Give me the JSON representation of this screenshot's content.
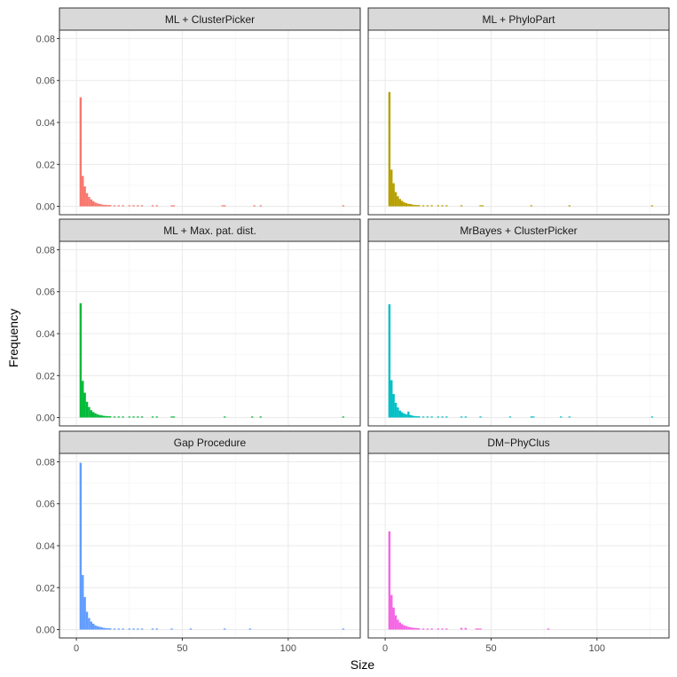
{
  "chart_data": {
    "type": "bar",
    "facet_layout": "3 rows x 2 columns",
    "xlabel": "Size",
    "ylabel": "Frequency",
    "xlim": [
      -8,
      134
    ],
    "ylim": [
      -0.004,
      0.084
    ],
    "x_ticks": [
      0,
      50,
      100
    ],
    "x_tick_labels": [
      "0",
      "50",
      "100"
    ],
    "y_ticks": [
      0,
      0.02,
      0.04,
      0.06,
      0.08
    ],
    "y_tick_labels": [
      "0.00",
      "0.02",
      "0.04",
      "0.06",
      "0.08"
    ],
    "grid": true,
    "legend": "none",
    "bin_width": 1,
    "panels": [
      {
        "title": "ML + ClusterPicker",
        "color": "#F8766D",
        "x": [
          2,
          3,
          4,
          5,
          6,
          7,
          8,
          9,
          10,
          11,
          12,
          13,
          14,
          15,
          16,
          18,
          20,
          22,
          25,
          27,
          29,
          31,
          36,
          38,
          45,
          46,
          69,
          70,
          84,
          87,
          126
        ],
        "values": [
          0.052,
          0.0145,
          0.0095,
          0.0063,
          0.0045,
          0.0033,
          0.0025,
          0.0018,
          0.0014,
          0.0011,
          0.0009,
          0.0007,
          0.0007,
          0.0006,
          0.0006,
          0.0005,
          0.0005,
          0.0005,
          0.0005,
          0.0005,
          0.0005,
          0.0005,
          0.0005,
          0.0005,
          0.0005,
          0.0005,
          0.0005,
          0.0005,
          0.0005,
          0.0005,
          0.0005
        ]
      },
      {
        "title": "ML + PhyloPart",
        "color": "#B79F00",
        "x": [
          2,
          3,
          4,
          5,
          6,
          7,
          8,
          9,
          10,
          11,
          12,
          13,
          14,
          15,
          16,
          18,
          20,
          22,
          25,
          27,
          29,
          36,
          45,
          46,
          69,
          87,
          126
        ],
        "values": [
          0.0545,
          0.0175,
          0.011,
          0.0068,
          0.0048,
          0.0035,
          0.0026,
          0.0019,
          0.0015,
          0.0012,
          0.0011,
          0.0008,
          0.0007,
          0.0006,
          0.0006,
          0.0005,
          0.0005,
          0.0005,
          0.0005,
          0.0005,
          0.0005,
          0.0005,
          0.0005,
          0.0005,
          0.0005,
          0.0005,
          0.0005
        ]
      },
      {
        "title": "ML + Max. pat. dist.",
        "color": "#00BA38",
        "x": [
          2,
          3,
          4,
          5,
          6,
          7,
          8,
          9,
          10,
          11,
          12,
          13,
          14,
          15,
          16,
          18,
          20,
          22,
          25,
          27,
          29,
          31,
          36,
          38,
          45,
          46,
          70,
          83,
          87,
          126
        ],
        "values": [
          0.0545,
          0.0175,
          0.0118,
          0.0075,
          0.005,
          0.0035,
          0.0026,
          0.002,
          0.0015,
          0.0012,
          0.001,
          0.0008,
          0.0007,
          0.0006,
          0.0006,
          0.0005,
          0.0005,
          0.0005,
          0.0005,
          0.0005,
          0.0005,
          0.0005,
          0.0005,
          0.0005,
          0.0005,
          0.0005,
          0.0005,
          0.0005,
          0.0005,
          0.0005
        ]
      },
      {
        "title": "MrBayes + ClusterPicker",
        "color": "#00BFC4",
        "x": [
          2,
          3,
          4,
          5,
          6,
          7,
          8,
          9,
          10,
          11,
          12,
          13,
          14,
          15,
          16,
          18,
          20,
          22,
          25,
          27,
          29,
          36,
          38,
          45,
          59,
          69,
          70,
          83,
          87,
          126
        ],
        "values": [
          0.054,
          0.0178,
          0.0112,
          0.007,
          0.0048,
          0.0033,
          0.0025,
          0.0019,
          0.0015,
          0.0028,
          0.0012,
          0.0009,
          0.0007,
          0.0006,
          0.0006,
          0.0005,
          0.0005,
          0.0005,
          0.0005,
          0.0005,
          0.0005,
          0.0005,
          0.0005,
          0.0005,
          0.0005,
          0.0005,
          0.0005,
          0.0005,
          0.0005,
          0.0005
        ]
      },
      {
        "title": "Gap Procedure",
        "color": "#619CFF",
        "x": [
          2,
          3,
          4,
          5,
          6,
          7,
          8,
          9,
          10,
          11,
          12,
          13,
          14,
          15,
          16,
          18,
          20,
          22,
          25,
          27,
          29,
          31,
          36,
          38,
          45,
          54,
          70,
          82,
          126
        ],
        "values": [
          0.0795,
          0.026,
          0.0155,
          0.0085,
          0.0055,
          0.0038,
          0.0028,
          0.002,
          0.0016,
          0.0013,
          0.0011,
          0.0008,
          0.0007,
          0.0006,
          0.0006,
          0.0005,
          0.0005,
          0.0005,
          0.0005,
          0.0005,
          0.0005,
          0.0005,
          0.0005,
          0.0005,
          0.0005,
          0.0005,
          0.0005,
          0.0005,
          0.0005
        ]
      },
      {
        "title": "DM−PhyClus",
        "color": "#F564E3",
        "x": [
          2,
          3,
          4,
          5,
          6,
          7,
          8,
          9,
          10,
          11,
          12,
          13,
          14,
          15,
          16,
          18,
          20,
          22,
          25,
          27,
          29,
          36,
          38,
          43,
          44,
          45,
          77
        ],
        "values": [
          0.0468,
          0.0165,
          0.0105,
          0.0068,
          0.0047,
          0.0034,
          0.0026,
          0.002,
          0.0016,
          0.0013,
          0.0011,
          0.0009,
          0.0008,
          0.0007,
          0.0006,
          0.0005,
          0.0005,
          0.0005,
          0.0005,
          0.0005,
          0.0005,
          0.0008,
          0.0008,
          0.0005,
          0.0005,
          0.0005,
          0.0005
        ]
      }
    ]
  }
}
